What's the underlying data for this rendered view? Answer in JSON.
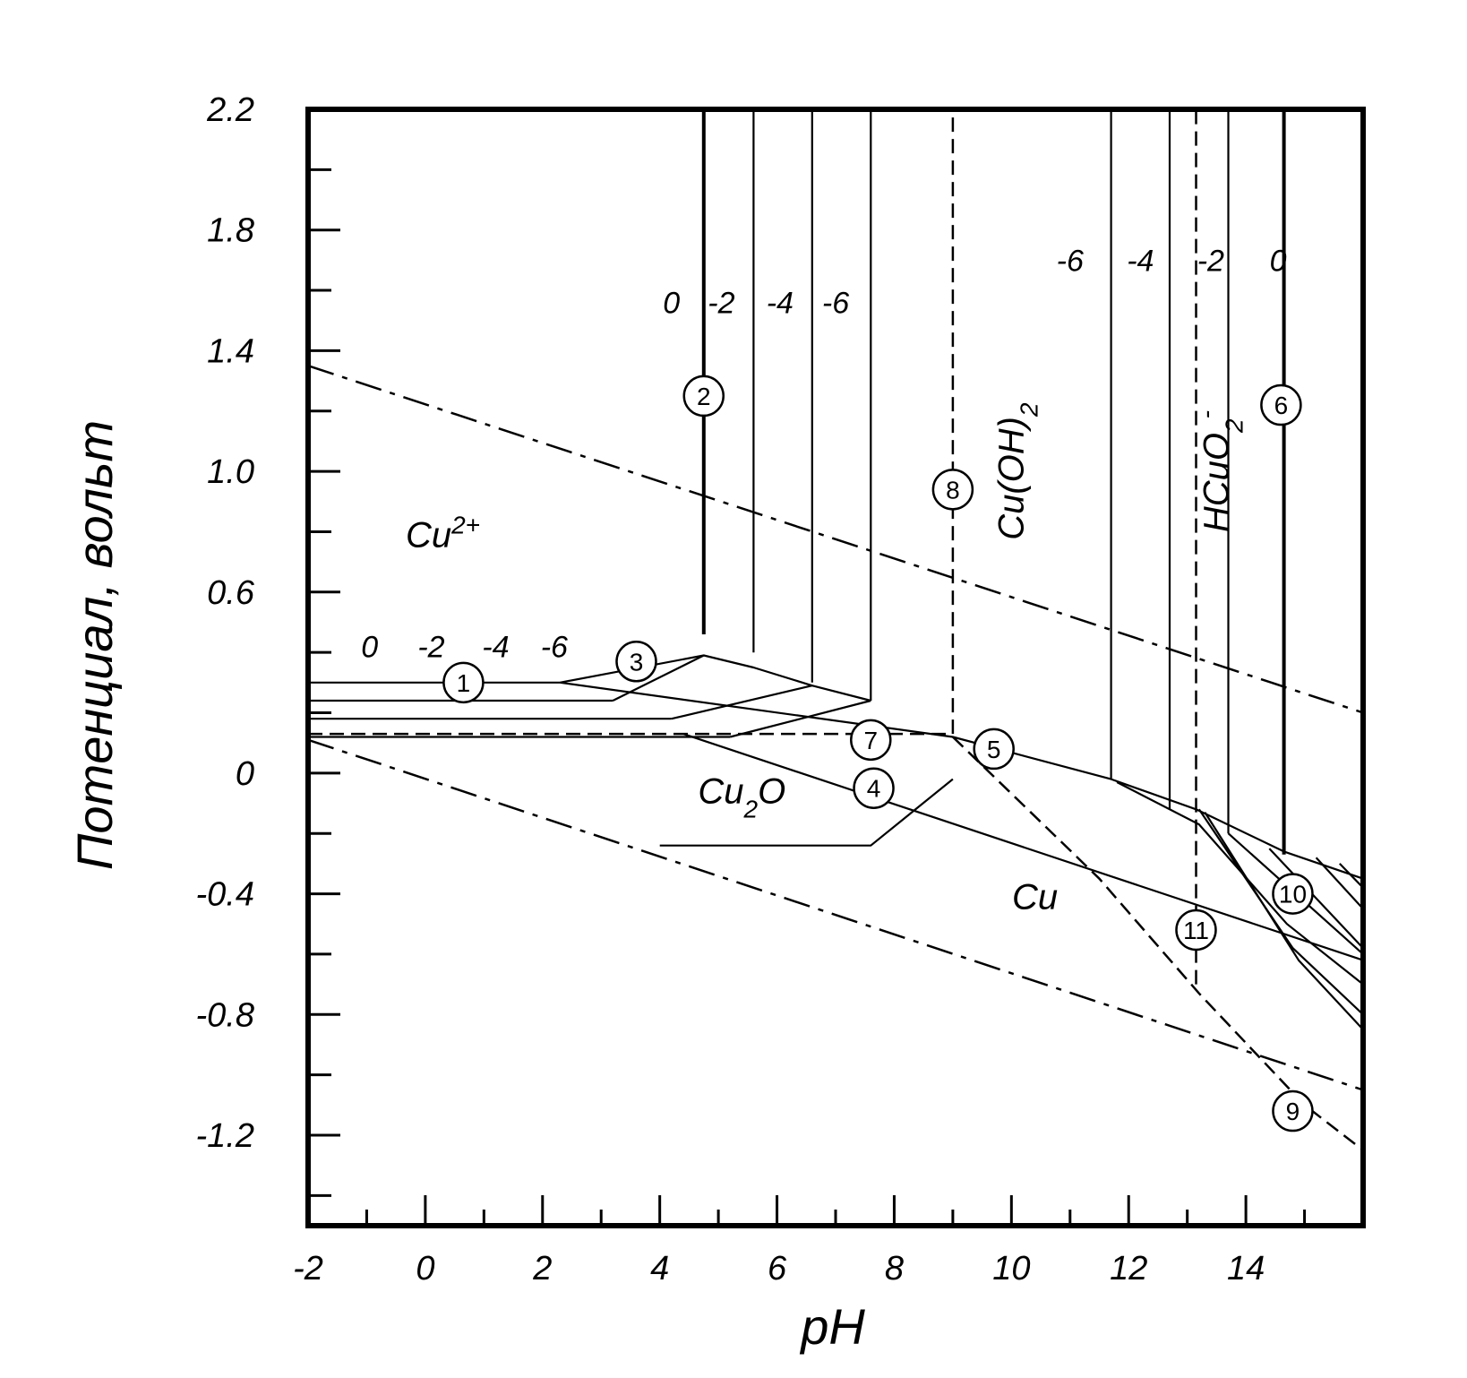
{
  "chart_data": {
    "type": "line",
    "title": "",
    "xlabel": "pH",
    "ylabel": "Потенциал, вольт",
    "xlim": [
      -2,
      16
    ],
    "ylim": [
      -1.5,
      2.2
    ],
    "grid": false,
    "x_ticks": [
      {
        "value": -2,
        "label": "-2"
      },
      {
        "value": 0,
        "label": "0"
      },
      {
        "value": 2,
        "label": "2"
      },
      {
        "value": 4,
        "label": "4"
      },
      {
        "value": 6,
        "label": "6"
      },
      {
        "value": 8,
        "label": "8"
      },
      {
        "value": 10,
        "label": "10"
      },
      {
        "value": 12,
        "label": "12"
      },
      {
        "value": 14,
        "label": "14"
      }
    ],
    "x_minor_ticks": [
      -2,
      -1,
      0,
      1,
      2,
      3,
      4,
      5,
      6,
      7,
      8,
      9,
      10,
      11,
      12,
      13,
      14,
      15
    ],
    "y_ticks": [
      {
        "value": 2.2,
        "label": "2.2"
      },
      {
        "value": 1.8,
        "label": "1.8"
      },
      {
        "value": 1.4,
        "label": "1.4"
      },
      {
        "value": 1.0,
        "label": "1.0"
      },
      {
        "value": 0.6,
        "label": "0.6"
      },
      {
        "value": 0,
        "label": "0"
      },
      {
        "value": -0.4,
        "label": "-0.4"
      },
      {
        "value": -0.8,
        "label": "-0.8"
      },
      {
        "value": -1.2,
        "label": "-1.2"
      }
    ],
    "y_minor_ticks": [
      2.0,
      1.6,
      1.2,
      0.8,
      0.4,
      0.2,
      -0.2,
      -0.6,
      -1.0,
      -1.4
    ],
    "series": [
      {
        "style": "dashed-water",
        "x": [
          -2,
          16
        ],
        "y": [
          1.35,
          0.2
        ]
      },
      {
        "style": "dashed-water",
        "x": [
          -2,
          16
        ],
        "y": [
          0.11,
          -1.05
        ]
      },
      {
        "style": "thick",
        "x": [
          4.75,
          4.75
        ],
        "y": [
          0.46,
          2.2
        ]
      },
      {
        "style": "thin",
        "x": [
          5.6,
          5.6
        ],
        "y": [
          0.4,
          2.2
        ]
      },
      {
        "style": "thin",
        "x": [
          6.6,
          6.6
        ],
        "y": [
          0.3,
          2.2
        ]
      },
      {
        "style": "thin",
        "x": [
          7.6,
          7.6
        ],
        "y": [
          0.24,
          2.2
        ]
      },
      {
        "style": "thin",
        "x": [
          11.7,
          11.7
        ],
        "y": [
          -0.02,
          2.2
        ]
      },
      {
        "style": "thin",
        "x": [
          12.7,
          12.7
        ],
        "y": [
          -0.12,
          2.2
        ]
      },
      {
        "style": "thin",
        "x": [
          13.7,
          13.7
        ],
        "y": [
          -0.2,
          2.2
        ]
      },
      {
        "style": "thick",
        "x": [
          14.65,
          14.65
        ],
        "y": [
          -0.27,
          2.2
        ]
      },
      {
        "style": "dashed",
        "x": [
          9.0,
          9.0
        ],
        "y": [
          0.13,
          2.2
        ]
      },
      {
        "style": "dashed",
        "x": [
          13.15,
          13.15
        ],
        "y": [
          -0.7,
          2.2
        ]
      },
      {
        "style": "dashed",
        "x": [
          -2,
          9.0
        ],
        "y": [
          0.13,
          0.13
        ]
      },
      {
        "style": "thin",
        "x": [
          -2,
          2.3
        ],
        "y": [
          0.3,
          0.3
        ]
      },
      {
        "style": "thin",
        "x": [
          -2,
          3.2
        ],
        "y": [
          0.24,
          0.24
        ]
      },
      {
        "style": "thin",
        "x": [
          -2,
          4.2
        ],
        "y": [
          0.18,
          0.18
        ]
      },
      {
        "style": "thin",
        "x": [
          -2,
          5.2
        ],
        "y": [
          0.12,
          0.12
        ]
      },
      {
        "style": "thin",
        "x": [
          2.3,
          4.75
        ],
        "y": [
          0.3,
          0.39
        ]
      },
      {
        "style": "thin",
        "x": [
          2.3,
          9.0,
          11.7,
          13.15,
          14.65,
          16.0
        ],
        "y": [
          0.3,
          0.12,
          -0.02,
          -0.12,
          -0.26,
          -0.35
        ]
      },
      {
        "style": "thin",
        "x": [
          3.2,
          4.75,
          5.6,
          6.6,
          7.6
        ],
        "y": [
          0.24,
          0.39,
          0.35,
          0.29,
          0.24
        ]
      },
      {
        "style": "thin",
        "x": [
          4.2,
          6.6
        ],
        "y": [
          0.18,
          0.29
        ]
      },
      {
        "style": "thin",
        "x": [
          5.2,
          7.6
        ],
        "y": [
          0.12,
          0.24
        ]
      },
      {
        "style": "thin",
        "x": [
          4.4,
          16.0
        ],
        "y": [
          0.13,
          -0.62
        ]
      },
      {
        "style": "thin",
        "x": [
          4.0,
          7.6,
          9.0
        ],
        "y": [
          -0.24,
          -0.24,
          -0.02
        ]
      },
      {
        "style": "dashed",
        "x": [
          9.0,
          11.5,
          13.2,
          15.0,
          16.0
        ],
        "y": [
          0.12,
          -0.35,
          -0.73,
          -1.1,
          -1.25
        ]
      },
      {
        "style": "thin",
        "x": [
          11.8,
          13.2,
          14.7,
          16.0
        ],
        "y": [
          -0.03,
          -0.17,
          -0.5,
          -0.7
        ]
      },
      {
        "style": "thin",
        "x": [
          13.2,
          14.8,
          16.0
        ],
        "y": [
          -0.12,
          -0.58,
          -0.8
        ]
      },
      {
        "style": "thin",
        "x": [
          13.3,
          14.9,
          16.0
        ],
        "y": [
          -0.13,
          -0.62,
          -0.85
        ]
      },
      {
        "style": "thin",
        "x": [
          13.7,
          16.0
        ],
        "y": [
          -0.2,
          -0.6
        ]
      },
      {
        "style": "thin",
        "x": [
          14.4,
          16.0
        ],
        "y": [
          -0.25,
          -0.58
        ]
      },
      {
        "style": "thin",
        "x": [
          15.2,
          16.0
        ],
        "y": [
          -0.28,
          -0.45
        ]
      },
      {
        "style": "thin",
        "x": [
          15.6,
          16.0
        ],
        "y": [
          -0.3,
          -0.38
        ]
      }
    ],
    "regions": [
      {
        "label": "Cu2+",
        "x": 0.3,
        "y": 0.75,
        "sup": "2+"
      },
      {
        "label": "Cu2O",
        "x": 5.4,
        "y": -0.1,
        "sub": "2"
      },
      {
        "label": "Cu",
        "x": 10.4,
        "y": -0.45
      },
      {
        "label": "Cu(OH)2",
        "x": 10.2,
        "y": 1.0,
        "rotate": -90,
        "sub": "2"
      },
      {
        "label": "HCuO2-",
        "x": 13.7,
        "y": 1.0,
        "rotate": -90,
        "sub": "2",
        "sup": "-"
      }
    ],
    "iso_labels": [
      {
        "text": "0",
        "x": 4.2,
        "y": 1.56
      },
      {
        "text": "-2",
        "x": 5.05,
        "y": 1.56
      },
      {
        "text": "-4",
        "x": 6.05,
        "y": 1.56
      },
      {
        "text": "-6",
        "x": 7.0,
        "y": 1.56
      },
      {
        "text": "-6",
        "x": 11.0,
        "y": 1.7
      },
      {
        "text": "-4",
        "x": 12.2,
        "y": 1.7
      },
      {
        "text": "-2",
        "x": 13.4,
        "y": 1.7
      },
      {
        "text": "0",
        "x": 14.55,
        "y": 1.7
      },
      {
        "text": "0",
        "x": -0.95,
        "y": 0.42
      },
      {
        "text": "-2",
        "x": 0.1,
        "y": 0.42
      },
      {
        "text": "-4",
        "x": 1.2,
        "y": 0.42
      },
      {
        "text": "-6",
        "x": 2.2,
        "y": 0.42
      }
    ],
    "circled_labels": [
      {
        "text": "1",
        "x": 0.65,
        "y": 0.3
      },
      {
        "text": "2",
        "x": 4.75,
        "y": 1.25
      },
      {
        "text": "3",
        "x": 3.6,
        "y": 0.37
      },
      {
        "text": "4",
        "x": 7.65,
        "y": -0.05
      },
      {
        "text": "5",
        "x": 9.7,
        "y": 0.08
      },
      {
        "text": "6",
        "x": 14.6,
        "y": 1.22
      },
      {
        "text": "7",
        "x": 7.6,
        "y": 0.11
      },
      {
        "text": "8",
        "x": 9.0,
        "y": 0.94
      },
      {
        "text": "9",
        "x": 14.8,
        "y": -1.12
      },
      {
        "text": "10",
        "x": 14.8,
        "y": -0.4
      },
      {
        "text": "11",
        "x": 13.15,
        "y": -0.52
      }
    ]
  }
}
